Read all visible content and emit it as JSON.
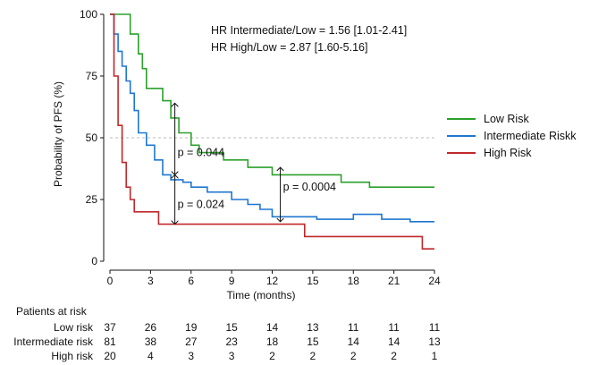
{
  "chart_data": {
    "type": "line",
    "xlabel": "Time (months)",
    "ylabel": "Probability of PFS (%)",
    "xlim": [
      0,
      24
    ],
    "ylim": [
      0,
      100
    ],
    "x_ticks": [
      0,
      3,
      6,
      9,
      12,
      15,
      18,
      21,
      24
    ],
    "y_ticks": [
      0,
      25,
      50,
      75,
      100
    ],
    "reference_line": {
      "y": 50,
      "style": "dashed"
    },
    "legend_placement": "right",
    "series": [
      {
        "name": "Low Risk",
        "color": "#2ca02c",
        "x": [
          0,
          1.5,
          1.5,
          2.1,
          2.1,
          2.4,
          2.4,
          2.7,
          2.7,
          3.9,
          3.9,
          4.5,
          4.5,
          5.1,
          5.1,
          6.0,
          6.0,
          6.6,
          6.6,
          8.4,
          8.4,
          10.2,
          10.2,
          12.0,
          12.0,
          17.1,
          17.1,
          19.2,
          19.2,
          24
        ],
        "y": [
          100,
          100,
          92,
          92,
          84,
          84,
          78,
          78,
          70,
          70,
          65,
          65,
          58,
          58,
          52,
          52,
          47,
          47,
          44,
          44,
          41,
          41,
          38,
          38,
          35,
          35,
          32,
          32,
          30,
          30
        ]
      },
      {
        "name": "Intermediate Riskk",
        "color": "#1f77d0",
        "x": [
          0,
          0.3,
          0.3,
          0.6,
          0.6,
          0.9,
          0.9,
          1.2,
          1.2,
          1.5,
          1.5,
          1.8,
          1.8,
          2.1,
          2.1,
          2.7,
          2.7,
          3.3,
          3.3,
          3.9,
          3.9,
          4.5,
          4.5,
          5.4,
          5.4,
          6.0,
          6.0,
          7.2,
          7.2,
          9.0,
          9.0,
          10.2,
          10.2,
          11.1,
          11.1,
          12.0,
          12.0,
          15.3,
          15.3,
          18.0,
          18.0,
          20.1,
          20.1,
          22.2,
          22.2,
          24
        ],
        "y": [
          100,
          100,
          92,
          92,
          85,
          85,
          79,
          79,
          73,
          73,
          68,
          68,
          61,
          61,
          52,
          52,
          47,
          47,
          41,
          41,
          35,
          35,
          33,
          33,
          32,
          32,
          30,
          30,
          28,
          28,
          25,
          25,
          23,
          23,
          21,
          21,
          18,
          18,
          17,
          17,
          19,
          19,
          17,
          17,
          16,
          16
        ]
      },
      {
        "name": "High Risk",
        "color": "#c0282b",
        "x": [
          0,
          0.3,
          0.3,
          0.6,
          0.6,
          0.9,
          0.9,
          1.2,
          1.2,
          1.5,
          1.5,
          1.8,
          1.8,
          3.6,
          3.6,
          7.2,
          7.2,
          14.4,
          14.4,
          23.1,
          23.1,
          24
        ],
        "y": [
          100,
          100,
          75,
          75,
          55,
          55,
          40,
          40,
          30,
          30,
          25,
          25,
          20,
          20,
          15,
          15,
          15,
          15,
          10,
          10,
          5,
          5
        ]
      }
    ],
    "annotations": [
      {
        "text": "HR Intermediate/Low = 1.56 [1.01-2.41]"
      },
      {
        "text": "HR High/Low = 2.87 [1.60-5.16]"
      },
      {
        "text": "p = 0.044",
        "x": 4.8,
        "y": 44,
        "arrow_x": 4.8,
        "arrow_from": 35,
        "arrow_to": 64
      },
      {
        "text": "p = 0.024",
        "x": 4.8,
        "y": 23,
        "arrow_x": 4.8,
        "arrow_from": 15,
        "arrow_to": 35
      },
      {
        "text": "p = 0.0004",
        "x": 12.6,
        "y": 30,
        "arrow_x": 12.6,
        "arrow_from": 16,
        "arrow_to": 38
      }
    ]
  },
  "risk_table": {
    "title": "Patients at risk",
    "rows": [
      {
        "label": "Low risk",
        "values": [
          37,
          26,
          19,
          15,
          14,
          13,
          11,
          11,
          11
        ]
      },
      {
        "label": "Intermediate risk",
        "values": [
          81,
          38,
          27,
          23,
          18,
          15,
          14,
          14,
          13
        ]
      },
      {
        "label": "High risk",
        "values": [
          20,
          4,
          3,
          3,
          2,
          2,
          2,
          2,
          1
        ]
      }
    ]
  }
}
